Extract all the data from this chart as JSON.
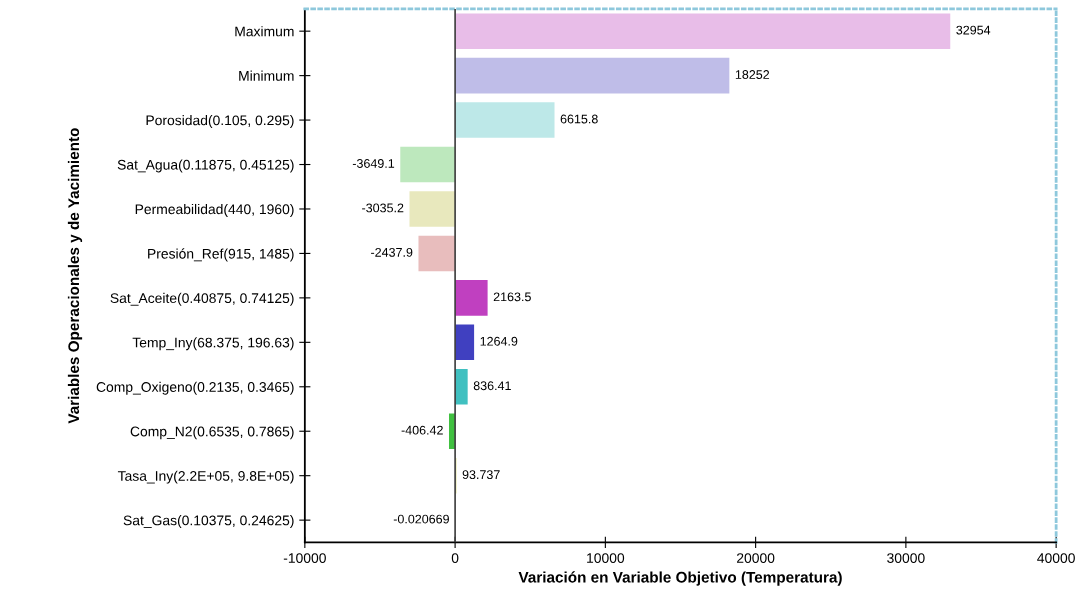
{
  "chart_data": {
    "type": "bar",
    "orientation": "horizontal",
    "categories": [
      "Maximum",
      "Minimum",
      "Porosidad(0.105, 0.295)",
      "Sat_Agua(0.11875, 0.45125)",
      "Permeabilidad(440, 1960)",
      "Presión_Ref(915, 1485)",
      "Sat_Aceite(0.40875, 0.74125)",
      "Temp_Iny(68.375, 196.63)",
      "Comp_Oxigeno(0.2135, 0.3465)",
      "Comp_N2(0.6535, 0.7865)",
      "Tasa_Iny(2.2E+05, 9.8E+05)",
      "Sat_Gas(0.10375, 0.24625)"
    ],
    "values": [
      32954,
      18252,
      6615.8,
      -3649.1,
      -3035.2,
      -2437.9,
      2163.5,
      1264.9,
      836.41,
      -406.42,
      93.737,
      -0.020669
    ],
    "colors": [
      "#e8bde8",
      "#bfbde8",
      "#bde8e8",
      "#bde8bd",
      "#e8e8bd",
      "#e8bdbd",
      "#c040c0",
      "#4040c0",
      "#40c0c0",
      "#40c040",
      "#e8e8a0",
      "#a04040"
    ],
    "data_labels": true,
    "xlim": [
      -10000,
      40000
    ],
    "xticks": [
      -10000,
      0,
      10000,
      20000,
      30000,
      40000
    ],
    "xlabel": "Variación en Variable Objetivo (Temperatura)",
    "ylabel": "Variables Operacionales y de Yacimiento",
    "ref_lines": [
      {
        "axis": "x",
        "value": 0,
        "color": "#404040"
      }
    ],
    "grid": false,
    "legend": false
  }
}
